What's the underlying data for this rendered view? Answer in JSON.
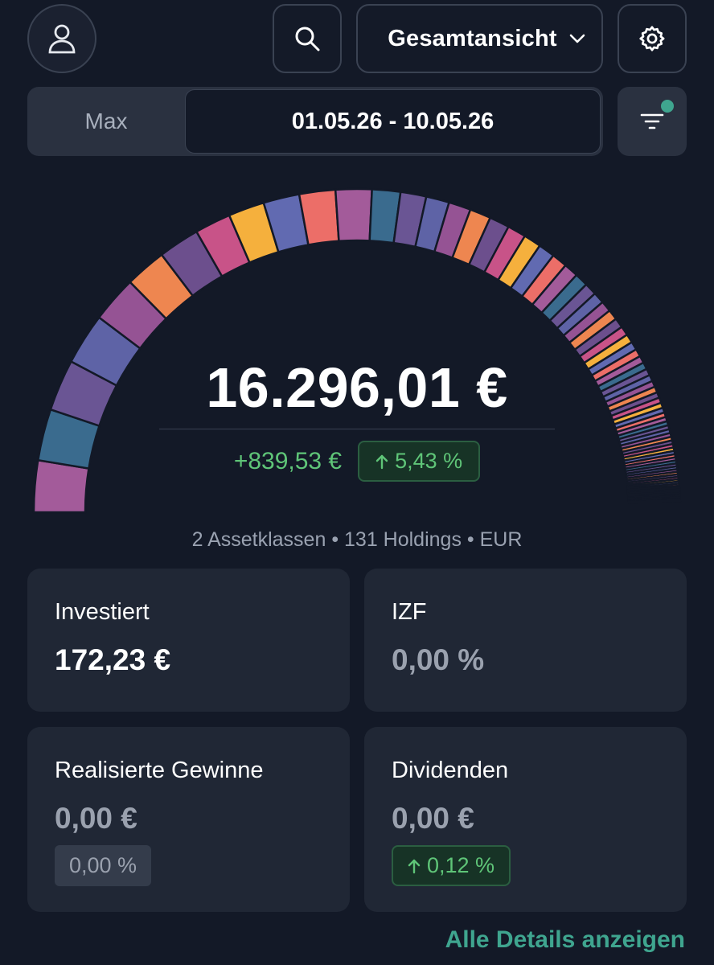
{
  "header": {
    "view_label": "Gesamtansicht",
    "icons": [
      "user-icon",
      "search-icon",
      "chevron-down-icon",
      "gear-icon",
      "filter-icon"
    ]
  },
  "range": {
    "max_label": "Max",
    "active_label": "01.05.26 - 10.05.26"
  },
  "summary": {
    "total": "16.296,01 €",
    "change_abs": "+839,53 €",
    "change_pct": "5,43 %",
    "meta": "2 Assetklassen • 131 Holdings • EUR"
  },
  "cards": {
    "invest": {
      "title": "Investiert",
      "value": "172,23 €"
    },
    "izf": {
      "title": "IZF",
      "value": "0,00 %"
    },
    "realized": {
      "title": "Realisierte Gewinne",
      "value": "0,00 €",
      "pill": "0,00 %"
    },
    "dividends": {
      "title": "Dividenden",
      "value": "0,00 €",
      "pill": "0,12 %"
    }
  },
  "footer": {
    "details_link": "Alle Details anzeigen"
  },
  "colors": {
    "background": "#131927",
    "card": "#202735",
    "positive": "#5fc578",
    "accent": "#3fa58f",
    "gauge_palette": [
      "#a35b9a",
      "#3a6b8e",
      "#6a5594",
      "#5e63a6",
      "#955394",
      "#ee8650",
      "#6c4f8d",
      "#c85388",
      "#f5b03d",
      "#616ab1",
      "#ec6e68"
    ]
  },
  "gauge": {
    "holding_weights": [
      10,
      10,
      10,
      10,
      9,
      8,
      8,
      7,
      7,
      7,
      7,
      7,
      5.5,
      5,
      4.5,
      4.3,
      4.1,
      3.9,
      3.6,
      3.4,
      3.2,
      3.0,
      2.8,
      2.6,
      2.4,
      2.2,
      2.1,
      2.0,
      1.9,
      1.8,
      1.7,
      1.6,
      1.5,
      1.4,
      1.35,
      1.3,
      1.25,
      1.2,
      1.15,
      1.1,
      1.05,
      1.0,
      0.95,
      0.9,
      0.85,
      0.8,
      0.78,
      0.76,
      0.74,
      0.72,
      0.7,
      0.68,
      0.66,
      0.64,
      0.62,
      0.6,
      0.58,
      0.56,
      0.54,
      0.52,
      0.5,
      0.48,
      0.46,
      0.44,
      0.42,
      0.4,
      0.38,
      0.36,
      0.34,
      0.32,
      0.3,
      0.28,
      0.26,
      0.24,
      0.22,
      0.2
    ]
  }
}
